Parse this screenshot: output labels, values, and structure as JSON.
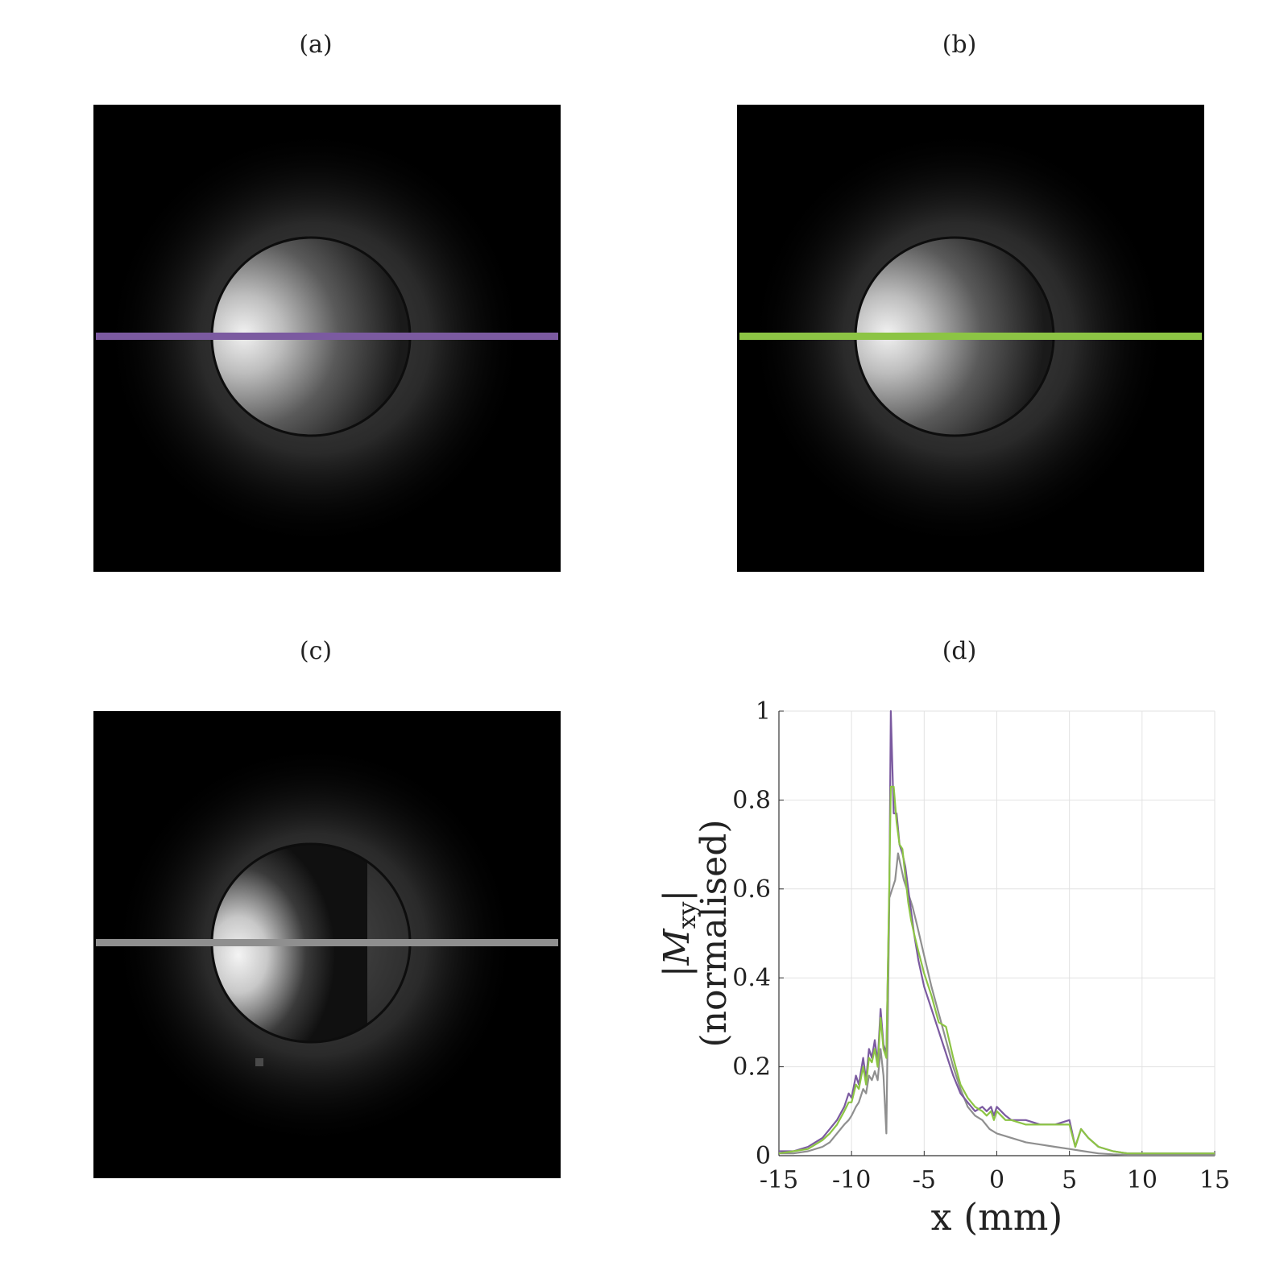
{
  "panels": {
    "a": "(a)",
    "b": "(b)",
    "c": "(c)",
    "d": "(d)"
  },
  "colors": {
    "purple": "#7b5aa0",
    "green": "#8cc444",
    "gray": "#8f8f8f",
    "background": "#000000"
  },
  "chart_data": {
    "type": "line",
    "xlabel": "x (mm)",
    "ylabel": "|M_xy| (normalised)",
    "ylabel_parts": {
      "mag": "|M",
      "sub": "xy",
      "close": "|",
      "norm": "(normalised)"
    },
    "xlim": [
      -15,
      15
    ],
    "ylim": [
      0,
      1
    ],
    "xticks": [
      "-15",
      "-10",
      "-5",
      "0",
      "5",
      "10",
      "15"
    ],
    "yticks": [
      "0",
      "0.2",
      "0.4",
      "0.6",
      "0.8",
      "1"
    ],
    "grid": true,
    "series": [
      {
        "color": "#7b5aa0",
        "x": [
          -15,
          -14,
          -13,
          -12,
          -11.5,
          -11,
          -10.5,
          -10.2,
          -10,
          -9.7,
          -9.5,
          -9.2,
          -9,
          -8.8,
          -8.6,
          -8.4,
          -8.2,
          -8,
          -7.8,
          -7.6,
          -7.4,
          -7.3,
          -7.1,
          -6.9,
          -6.7,
          -6.5,
          -6.3,
          -6.1,
          -5.9,
          -5.7,
          -5.4,
          -5,
          -4.5,
          -4,
          -3.5,
          -3,
          -2.5,
          -2,
          -1.5,
          -1,
          -0.7,
          -0.4,
          -0.2,
          0,
          0.3,
          0.6,
          1,
          2,
          3,
          4,
          5,
          5.4,
          5.8,
          6.3,
          7,
          8,
          9,
          10,
          12,
          14,
          15
        ],
        "values": [
          0.01,
          0.01,
          0.02,
          0.04,
          0.06,
          0.08,
          0.11,
          0.14,
          0.13,
          0.18,
          0.16,
          0.22,
          0.17,
          0.24,
          0.22,
          0.26,
          0.21,
          0.33,
          0.25,
          0.23,
          0.6,
          1.0,
          0.77,
          0.77,
          0.7,
          0.68,
          0.65,
          0.6,
          0.55,
          0.5,
          0.44,
          0.38,
          0.33,
          0.28,
          0.23,
          0.18,
          0.14,
          0.12,
          0.1,
          0.11,
          0.1,
          0.11,
          0.09,
          0.11,
          0.1,
          0.09,
          0.08,
          0.08,
          0.07,
          0.07,
          0.08,
          0.02,
          0.06,
          0.04,
          0.02,
          0.01,
          0.005,
          0.005,
          0.005,
          0.005,
          0.005
        ]
      },
      {
        "color": "#8cc444",
        "x": [
          -15,
          -14,
          -13,
          -12,
          -11.5,
          -11,
          -10.5,
          -10.2,
          -10,
          -9.7,
          -9.5,
          -9.2,
          -9,
          -8.8,
          -8.6,
          -8.4,
          -8.2,
          -8,
          -7.8,
          -7.6,
          -7.4,
          -7.3,
          -7.1,
          -6.9,
          -6.7,
          -6.5,
          -6.3,
          -6.1,
          -5.9,
          -5.7,
          -5.4,
          -5,
          -4.5,
          -4,
          -3.5,
          -3,
          -2.5,
          -2,
          -1.5,
          -1,
          -0.7,
          -0.4,
          -0.2,
          0,
          0.3,
          0.6,
          1,
          2,
          3,
          4,
          5,
          5.4,
          5.8,
          6.3,
          7,
          8,
          9,
          10,
          12,
          14,
          15
        ],
        "values": [
          0.005,
          0.01,
          0.015,
          0.035,
          0.05,
          0.07,
          0.1,
          0.12,
          0.12,
          0.16,
          0.15,
          0.2,
          0.16,
          0.22,
          0.21,
          0.24,
          0.2,
          0.31,
          0.24,
          0.22,
          0.62,
          0.83,
          0.83,
          0.75,
          0.7,
          0.69,
          0.63,
          0.57,
          0.53,
          0.5,
          0.46,
          0.41,
          0.36,
          0.3,
          0.29,
          0.22,
          0.16,
          0.13,
          0.11,
          0.1,
          0.09,
          0.1,
          0.08,
          0.1,
          0.09,
          0.08,
          0.08,
          0.07,
          0.07,
          0.07,
          0.07,
          0.02,
          0.06,
          0.04,
          0.02,
          0.01,
          0.005,
          0.005,
          0.005,
          0.005,
          0.005
        ]
      },
      {
        "color": "#8f8f8f",
        "x": [
          -15,
          -14,
          -13,
          -12,
          -11.5,
          -11,
          -10.5,
          -10.2,
          -10,
          -9.7,
          -9.5,
          -9.2,
          -9,
          -8.8,
          -8.6,
          -8.4,
          -8.2,
          -8,
          -7.8,
          -7.6,
          -7.4,
          -7.2,
          -7,
          -6.8,
          -6.6,
          -6.4,
          -6.2,
          -6,
          -5.8,
          -5.5,
          -5,
          -4.5,
          -4,
          -3.5,
          -3,
          -2.5,
          -2,
          -1.5,
          -1,
          -0.5,
          0,
          1,
          2,
          3,
          4,
          5,
          6,
          7,
          8,
          9,
          10,
          12,
          14,
          15
        ],
        "values": [
          0.005,
          0.005,
          0.01,
          0.02,
          0.03,
          0.05,
          0.07,
          0.08,
          0.09,
          0.11,
          0.12,
          0.15,
          0.14,
          0.18,
          0.17,
          0.19,
          0.17,
          0.24,
          0.18,
          0.05,
          0.58,
          0.6,
          0.62,
          0.68,
          0.65,
          0.62,
          0.6,
          0.58,
          0.56,
          0.52,
          0.45,
          0.38,
          0.32,
          0.26,
          0.2,
          0.15,
          0.11,
          0.09,
          0.08,
          0.06,
          0.05,
          0.04,
          0.03,
          0.025,
          0.02,
          0.015,
          0.01,
          0.005,
          0.003,
          0.002,
          0.002,
          0.002,
          0.002,
          0.002
        ]
      }
    ]
  }
}
